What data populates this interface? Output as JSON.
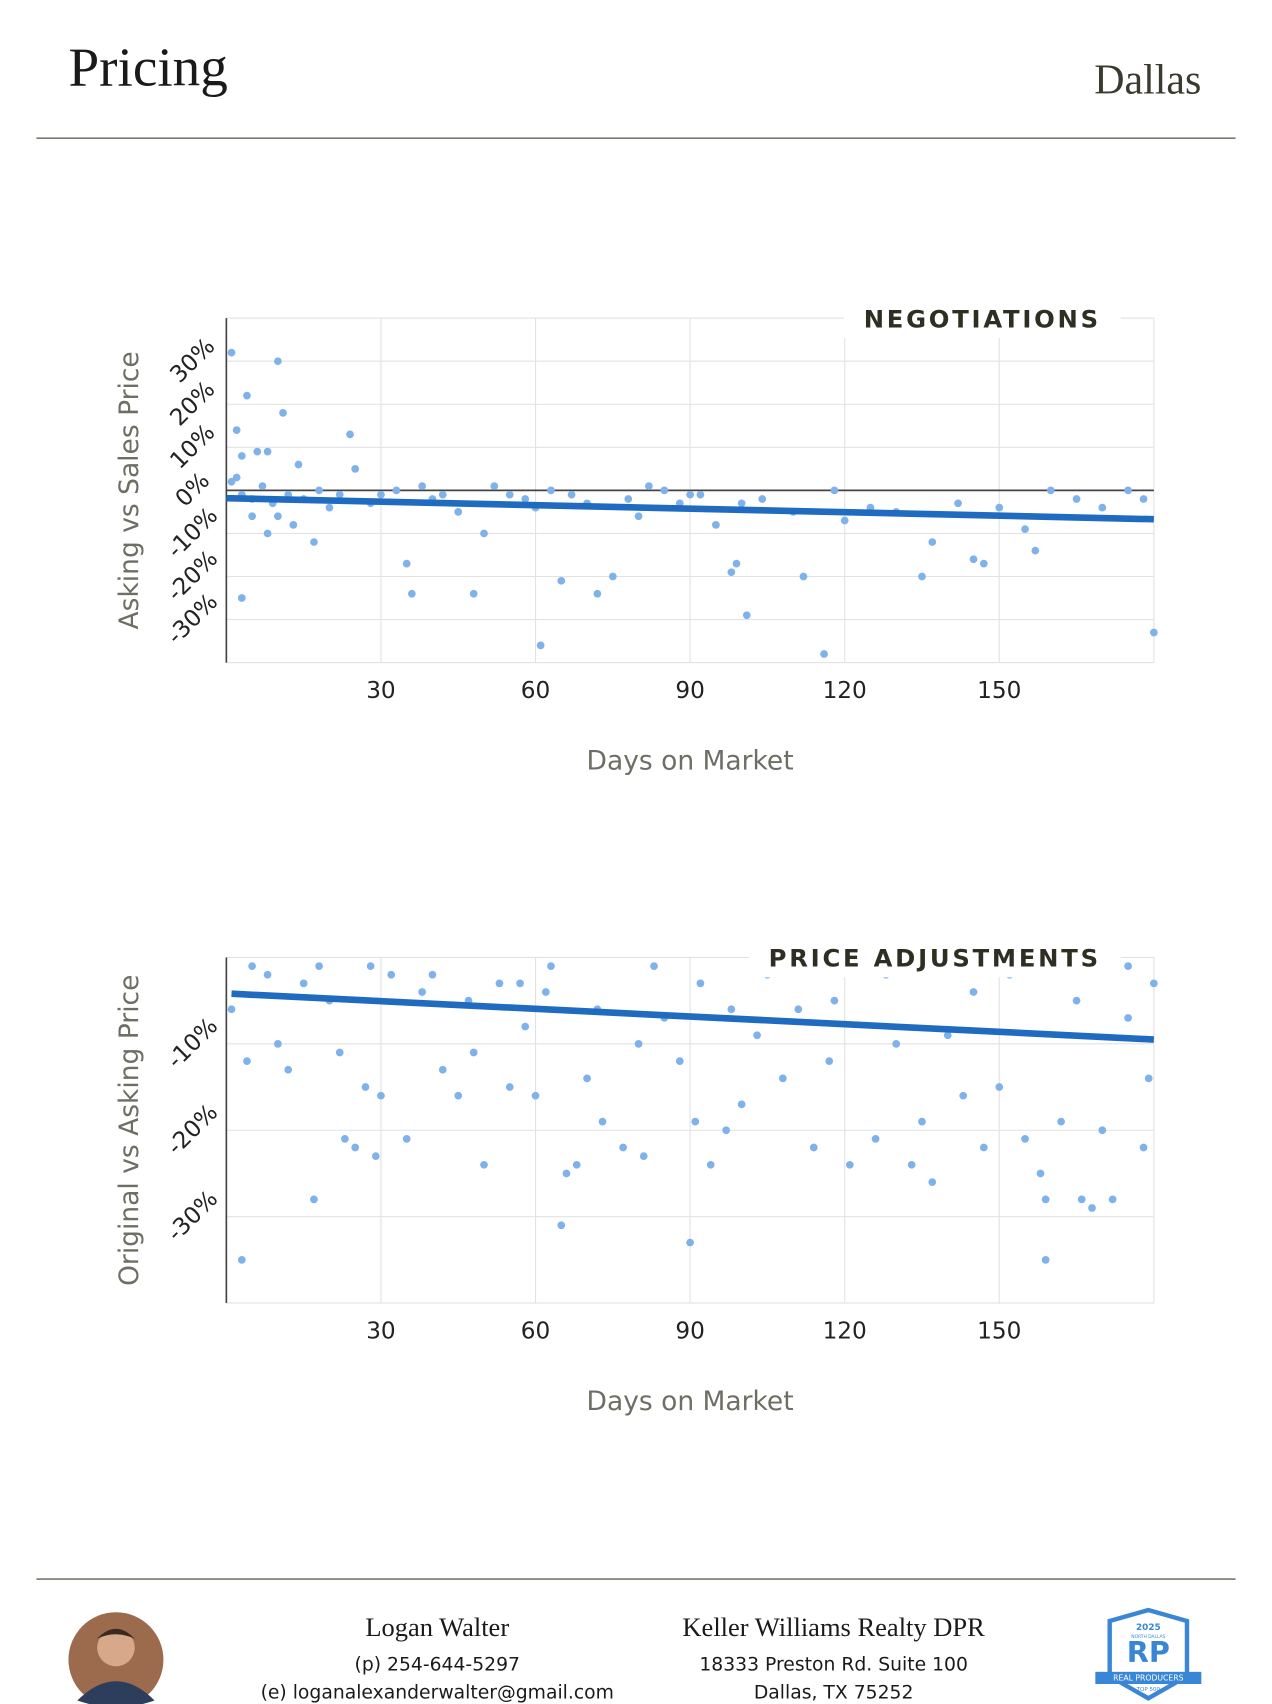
{
  "header": {
    "title": "Pricing",
    "location": "Dallas"
  },
  "chart_data": [
    {
      "type": "scatter",
      "title": "NEGOTIATIONS",
      "x_label": "Days on Market",
      "y_label": "Asking vs Sales Price",
      "color": "#7fb2ea",
      "x": [
        1,
        10,
        4,
        11,
        2,
        24,
        3,
        6,
        8,
        14,
        25,
        1,
        2,
        3,
        5,
        7,
        9,
        12,
        15,
        18,
        20,
        22,
        5,
        8,
        10,
        13,
        17,
        3,
        28,
        33,
        35,
        36,
        40,
        45,
        48,
        50,
        55,
        60,
        61,
        63,
        65,
        70,
        72,
        75,
        78,
        80,
        85,
        88,
        92,
        95,
        98,
        99,
        101,
        104,
        110,
        112,
        116,
        118,
        120,
        125,
        130,
        135,
        137,
        142,
        145,
        147,
        150,
        155,
        157,
        160,
        165,
        170,
        175,
        180,
        178,
        30,
        38,
        42,
        52,
        58,
        67,
        82,
        90,
        100
      ],
      "y": [
        32,
        30,
        22,
        18,
        14,
        13,
        8,
        9,
        9,
        6,
        5,
        2,
        3,
        -1,
        -2,
        1,
        -3,
        -1,
        -2,
        0,
        -4,
        -1,
        -6,
        -10,
        -6,
        -8,
        -12,
        -25,
        -3,
        0,
        -17,
        -24,
        -2,
        -5,
        -24,
        -10,
        -1,
        -4,
        -36,
        0,
        -21,
        -3,
        -24,
        -20,
        -2,
        -6,
        0,
        -3,
        -1,
        -8,
        -19,
        -17,
        -29,
        -2,
        -5,
        -20,
        -38,
        0,
        -7,
        -4,
        -5,
        -20,
        -12,
        -3,
        -16,
        -17,
        -4,
        -9,
        -14,
        0,
        -2,
        -4,
        0,
        -33,
        -2,
        -1,
        1,
        -1,
        1,
        -2,
        -1,
        1,
        -1,
        -3
      ],
      "trendline": {
        "color": "#1f6bbf",
        "x": [
          0,
          180
        ],
        "y": [
          -1.8,
          -6.7
        ]
      },
      "xlim": [
        0,
        180
      ],
      "ylim": [
        -40,
        40
      ],
      "xticks": [
        30,
        60,
        90,
        120,
        150
      ],
      "yticks": [
        {
          "value": 30,
          "label": "30%"
        },
        {
          "value": 20,
          "label": "20%"
        },
        {
          "value": 10,
          "label": "10%"
        },
        {
          "value": 0,
          "label": "0%"
        },
        {
          "value": -10,
          "label": "-10%"
        },
        {
          "value": -20,
          "label": "-20%"
        },
        {
          "value": -30,
          "label": "-30%"
        }
      ],
      "grid": true
    },
    {
      "type": "scatter",
      "title": "PRICE ADJUSTMENTS",
      "x_label": "Days on Market",
      "y_label": "Original vs Asking Price",
      "color": "#7fb2ea",
      "x": [
        1,
        3,
        4,
        8,
        10,
        12,
        15,
        17,
        20,
        22,
        23,
        25,
        27,
        29,
        30,
        32,
        35,
        38,
        42,
        45,
        48,
        50,
        53,
        55,
        58,
        60,
        62,
        65,
        66,
        68,
        70,
        73,
        77,
        80,
        81,
        85,
        88,
        90,
        91,
        94,
        97,
        100,
        103,
        108,
        111,
        114,
        117,
        121,
        126,
        130,
        133,
        135,
        137,
        140,
        143,
        147,
        150,
        152,
        155,
        158,
        159,
        159,
        162,
        166,
        168,
        170,
        172,
        175,
        178,
        179,
        180,
        5,
        18,
        28,
        40,
        47,
        57,
        63,
        72,
        83,
        92,
        98,
        105,
        118,
        128,
        145,
        165,
        175
      ],
      "y": [
        -6,
        -35,
        -12,
        -2,
        -10,
        -13,
        -3,
        -28,
        -5,
        -11,
        -21,
        -22,
        -15,
        -23,
        -16,
        -2,
        -21,
        -4,
        -13,
        -16,
        -11,
        -24,
        -3,
        -15,
        -8,
        -16,
        -4,
        -31,
        -25,
        -24,
        -14,
        -19,
        -22,
        -10,
        -23,
        -7,
        -12,
        -33,
        -19,
        -24,
        -20,
        -17,
        -9,
        -14,
        -6,
        -22,
        -12,
        -24,
        -21,
        -10,
        -24,
        -19,
        -26,
        -9,
        -16,
        -22,
        -15,
        -2,
        -21,
        -25,
        -35,
        -28,
        -19,
        -28,
        -29,
        -20,
        -28,
        -7,
        -22,
        -14,
        -3,
        -1,
        -1,
        -1,
        -2,
        -5,
        -3,
        -1,
        -6,
        -1,
        -3,
        -6,
        -2,
        -5,
        -2,
        -4,
        -5,
        -1
      ],
      "trendline": {
        "color": "#1f6bbf",
        "x": [
          1,
          180
        ],
        "y": [
          -4.2,
          -9.5
        ]
      },
      "xlim": [
        0,
        180
      ],
      "ylim": [
        -40,
        0
      ],
      "xticks": [
        30,
        60,
        90,
        120,
        150
      ],
      "yticks": [
        {
          "value": -10,
          "label": "-10%"
        },
        {
          "value": -20,
          "label": "-20%"
        },
        {
          "value": -30,
          "label": "-30%"
        }
      ],
      "grid": true
    }
  ],
  "footer": {
    "agent_name": "Logan Walter",
    "phone": "(p) 254-644-5297",
    "email": "(e) loganalexanderwalter@gmail.com",
    "company": "Keller Williams Realty DPR",
    "address_line1": "18333 Preston Rd. Suite 100",
    "address_line2": "Dallas, TX 75252",
    "badge": {
      "year": "2025",
      "region": "NORTH DALLAS",
      "logo": "RP",
      "name": "REAL PRODUCERS",
      "rank": "TOP 500"
    }
  }
}
